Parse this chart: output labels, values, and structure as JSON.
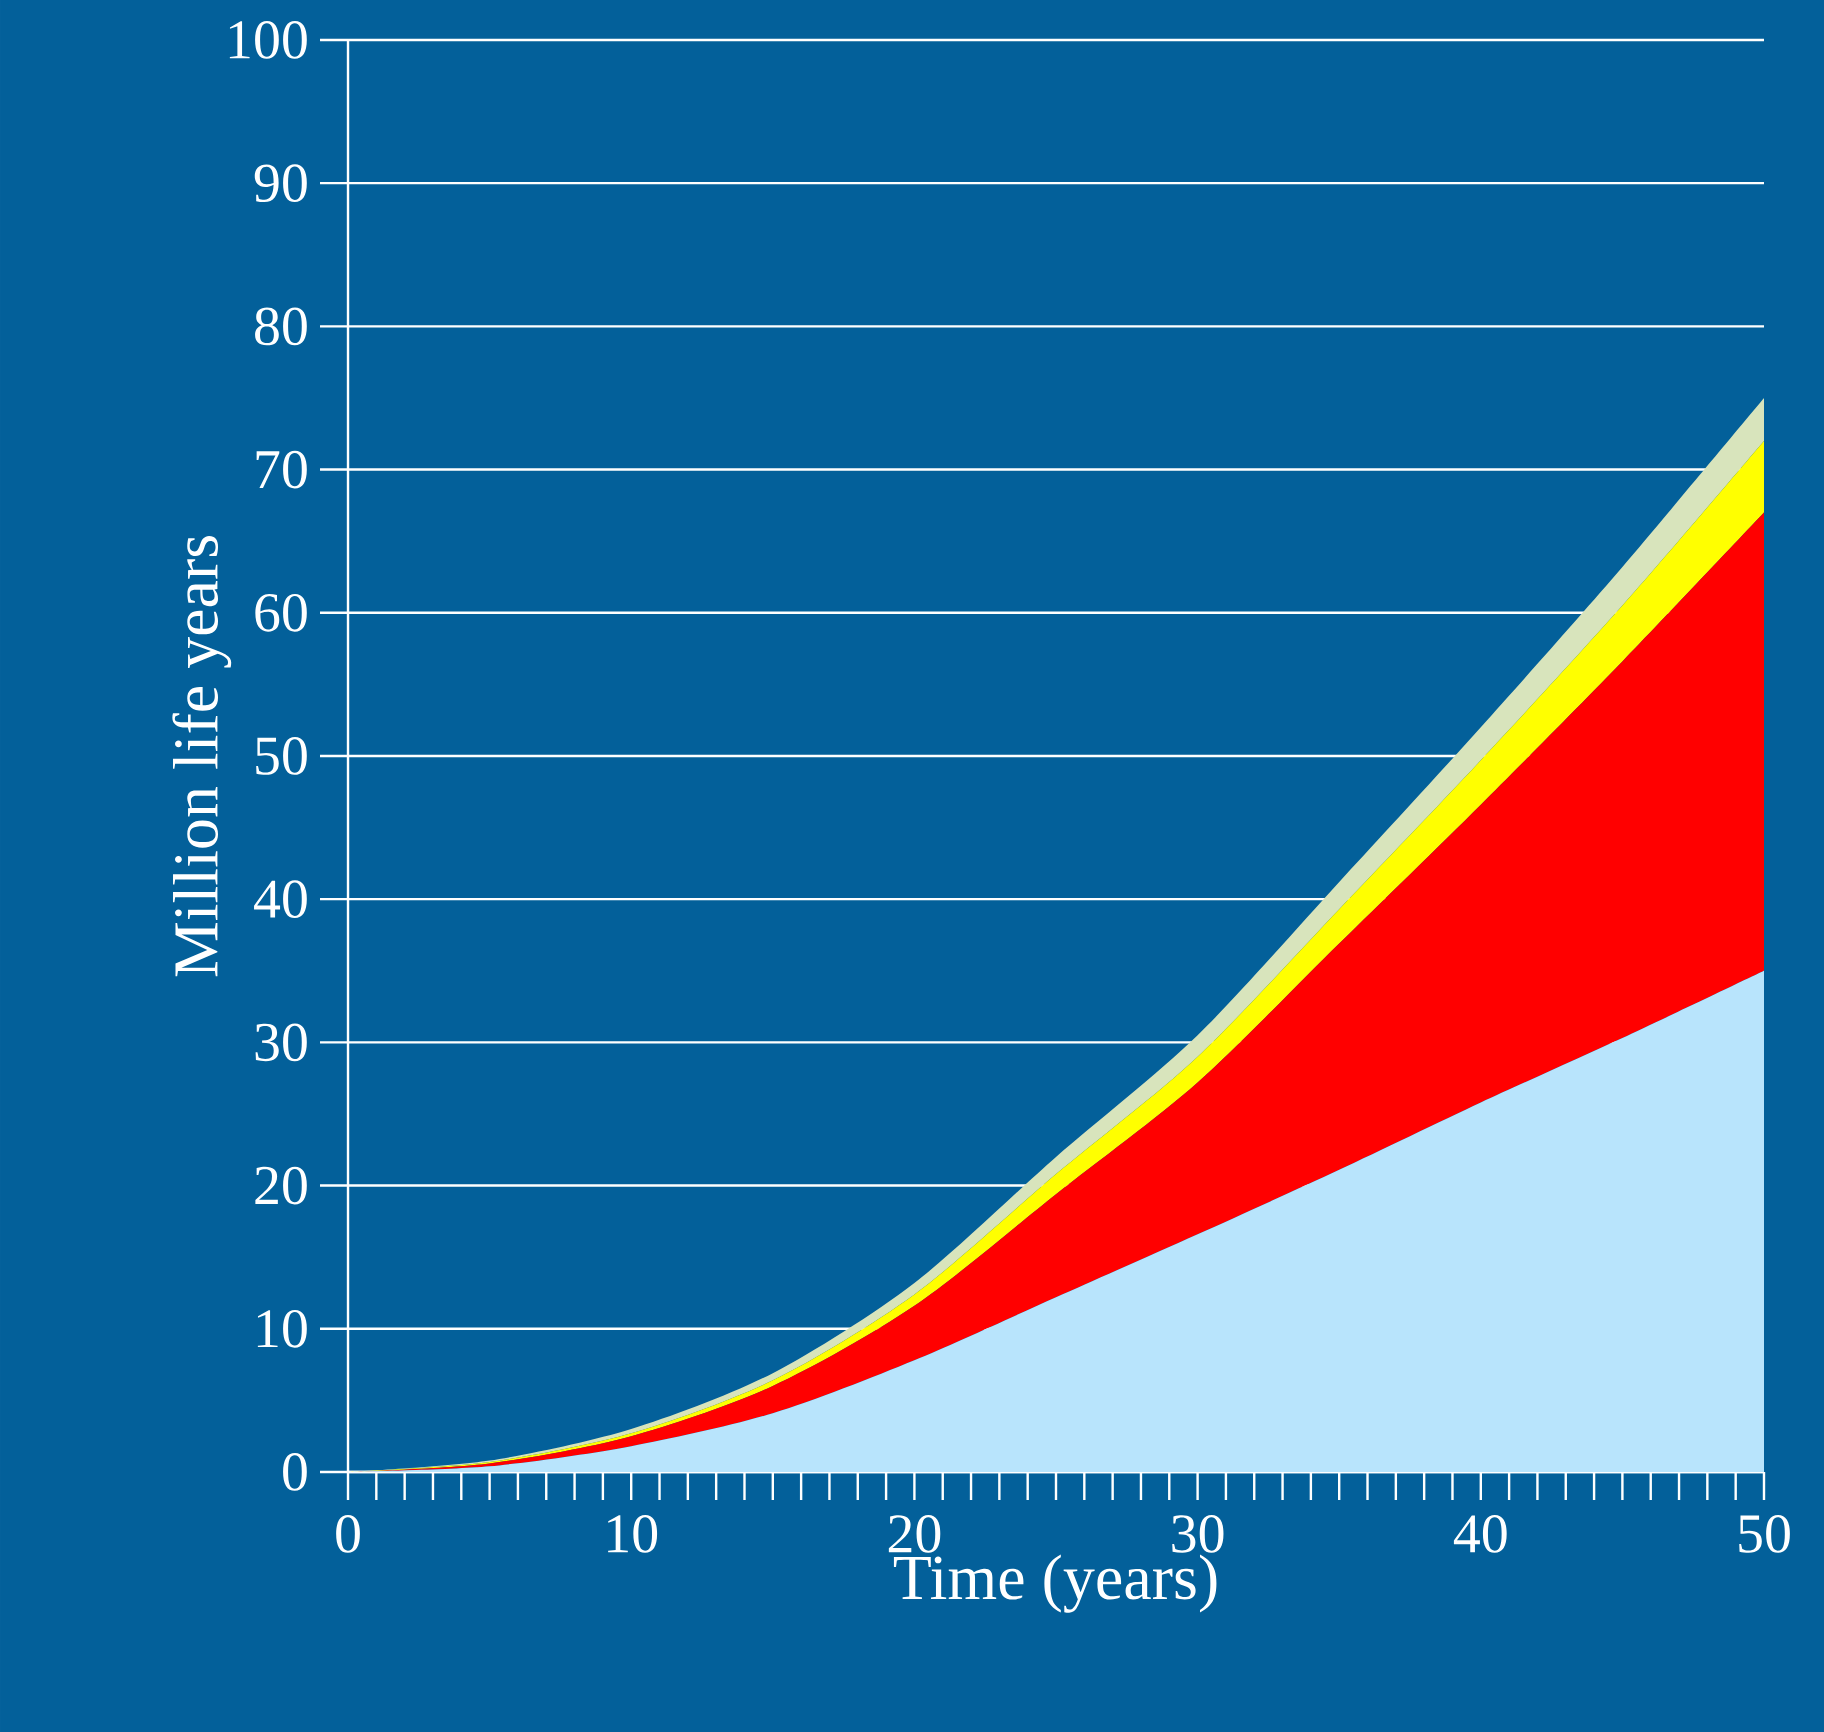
{
  "chart_data": {
    "type": "area",
    "stacked": true,
    "xlabel": "Time (years)",
    "ylabel": "Million life years",
    "x": [
      0,
      5,
      10,
      15,
      20,
      25,
      30,
      35,
      40,
      45,
      50
    ],
    "series": [
      {
        "color": "#b8e4fc",
        "values": [
          0,
          0.4,
          1.8,
          4.1,
          7.8,
          12.2,
          16.6,
          21.1,
          25.8,
          30.3,
          35
        ]
      },
      {
        "color": "#ff0000",
        "values": [
          0,
          0.2,
          0.7,
          1.9,
          3.8,
          7.2,
          10.6,
          15.8,
          20.8,
          26.3,
          32
        ]
      },
      {
        "color": "#ffff00",
        "values": [
          0,
          0.1,
          0.2,
          0.4,
          0.8,
          1.4,
          1.8,
          2.4,
          3.1,
          3.9,
          5
        ]
      },
      {
        "color": "#d8e4bc",
        "values": [
          0,
          0.1,
          0.3,
          0.5,
          0.8,
          1.2,
          1.5,
          1.9,
          2.3,
          2.7,
          3
        ]
      }
    ],
    "xlim": [
      0,
      50
    ],
    "ylim": [
      0,
      100
    ],
    "xticks": [
      0,
      {
        "value": 1,
        "label": null
      },
      {
        "value": 2,
        "label": null
      },
      {
        "value": 3,
        "label": null
      },
      {
        "value": 4,
        "label": null
      },
      {
        "value": 5,
        "label": null
      },
      {
        "value": 6,
        "label": null
      },
      {
        "value": 7,
        "label": null
      },
      {
        "value": 8,
        "label": null
      },
      {
        "value": 9,
        "label": null
      },
      10,
      {
        "value": 11,
        "label": null
      },
      {
        "value": 12,
        "label": null
      },
      {
        "value": 13,
        "label": null
      },
      {
        "value": 14,
        "label": null
      },
      {
        "value": 15,
        "label": null
      },
      {
        "value": 16,
        "label": null
      },
      {
        "value": 17,
        "label": null
      },
      {
        "value": 18,
        "label": null
      },
      {
        "value": 19,
        "label": null
      },
      20,
      {
        "value": 21,
        "label": null
      },
      {
        "value": 22,
        "label": null
      },
      {
        "value": 23,
        "label": null
      },
      {
        "value": 24,
        "label": null
      },
      {
        "value": 25,
        "label": null
      },
      {
        "value": 26,
        "label": null
      },
      {
        "value": 27,
        "label": null
      },
      {
        "value": 28,
        "label": null
      },
      {
        "value": 29,
        "label": null
      },
      30,
      {
        "value": 31,
        "label": null
      },
      {
        "value": 32,
        "label": null
      },
      {
        "value": 33,
        "label": null
      },
      {
        "value": 34,
        "label": null
      },
      {
        "value": 35,
        "label": null
      },
      {
        "value": 36,
        "label": null
      },
      {
        "value": 37,
        "label": null
      },
      {
        "value": 38,
        "label": null
      },
      {
        "value": 39,
        "label": null
      },
      40,
      {
        "value": 41,
        "label": null
      },
      {
        "value": 42,
        "label": null
      },
      {
        "value": 43,
        "label": null
      },
      {
        "value": 44,
        "label": null
      },
      {
        "value": 45,
        "label": null
      },
      {
        "value": 46,
        "label": null
      },
      {
        "value": 47,
        "label": null
      },
      {
        "value": 48,
        "label": null
      },
      {
        "value": 49,
        "label": null
      },
      50
    ],
    "yticks": [
      0,
      10,
      20,
      30,
      40,
      50,
      60,
      70,
      80,
      90,
      100
    ],
    "grid": "y"
  }
}
